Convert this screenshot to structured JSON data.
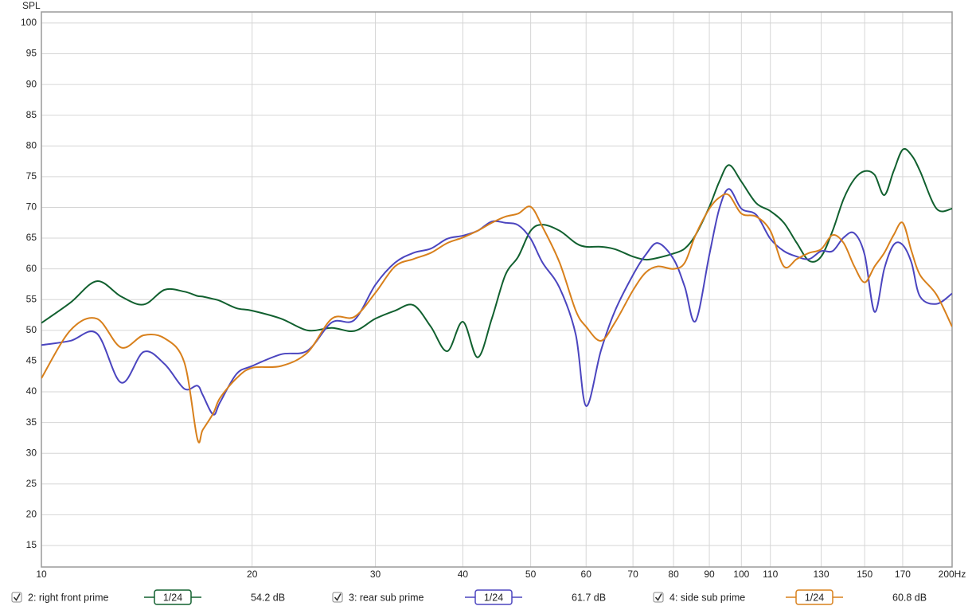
{
  "chart_data": {
    "type": "line",
    "y_label": "SPL",
    "xscale": "log",
    "grid": true,
    "xlim": [
      10,
      200
    ],
    "ylim": [
      11.5,
      101.8
    ],
    "xticks": [
      10,
      20,
      30,
      40,
      50,
      60,
      70,
      80,
      90,
      100,
      110,
      130,
      150,
      170,
      {
        "value": 200,
        "label": "200Hz"
      }
    ],
    "yticks": [
      15,
      20,
      25,
      30,
      35,
      40,
      45,
      50,
      55,
      60,
      65,
      70,
      75,
      80,
      85,
      90,
      95,
      100
    ],
    "x": [
      10,
      11,
      12,
      13,
      14,
      15,
      16,
      16.7,
      17,
      17.6,
      18,
      19,
      20,
      22,
      24,
      26,
      28,
      30,
      32,
      34,
      36,
      38,
      40,
      42,
      44,
      46,
      48,
      50,
      52,
      55,
      58,
      60,
      63,
      66,
      70,
      73,
      76,
      80,
      83,
      86,
      90,
      93,
      96,
      100,
      105,
      110,
      115,
      120,
      125,
      130,
      135,
      140,
      145,
      150,
      155,
      160,
      165,
      170,
      175,
      180,
      190,
      200
    ],
    "series": [
      {
        "name": "2: right front prime",
        "color": "#11602f",
        "smoothing": "1/24",
        "level": "54.2 dB",
        "values": [
          51.2,
          54.5,
          58,
          55.5,
          54.2,
          56.6,
          56.3,
          55.6,
          55.5,
          55.1,
          54.8,
          53.6,
          53.2,
          51.9,
          50,
          50.4,
          49.9,
          51.9,
          53.2,
          54.1,
          50.6,
          46.6,
          51.4,
          45.6,
          51.9,
          59,
          62,
          66.2,
          67.2,
          66.2,
          64.2,
          63.6,
          63.6,
          63.2,
          62,
          61.5,
          61.8,
          62.5,
          63.3,
          65.5,
          70.1,
          74.2,
          76.9,
          74.2,
          70.7,
          69.4,
          67.5,
          64.2,
          61.3,
          62,
          66.2,
          71.4,
          74.6,
          75.9,
          75.3,
          72,
          75.9,
          79.4,
          78.5,
          75.9,
          69.8,
          69.8
        ]
      },
      {
        "name": "3: rear sub prime",
        "color": "#4b45bf",
        "smoothing": "1/24",
        "level": "61.7 dB",
        "values": [
          47.6,
          48.3,
          49.5,
          41.5,
          46.5,
          44.5,
          40.5,
          41,
          39.5,
          36.3,
          38.3,
          42.9,
          44.2,
          46.1,
          46.7,
          51.3,
          51.7,
          57.4,
          61,
          62.6,
          63.3,
          64.9,
          65.4,
          66.2,
          67.7,
          67.5,
          67.1,
          64.9,
          61,
          56.9,
          49.3,
          37.7,
          46.7,
          53.2,
          59,
          62.3,
          64.2,
          61.6,
          57.1,
          51.5,
          62.3,
          69.8,
          73,
          69.8,
          68.8,
          64.9,
          62.9,
          62,
          61.6,
          62.9,
          62.9,
          65.1,
          65.8,
          62.3,
          53,
          60,
          63.9,
          63.9,
          61,
          55.5,
          54.3,
          56
        ]
      },
      {
        "name": "4: side sub prime",
        "color": "#d8801c",
        "smoothing": "1/24",
        "level": "60.8 dB",
        "values": [
          42.2,
          50,
          51.9,
          47.2,
          49.2,
          48.7,
          44.8,
          32.4,
          33.8,
          36.5,
          39,
          42.2,
          43.9,
          44.2,
          46.4,
          51.9,
          52.2,
          56.1,
          60.4,
          61.6,
          62.6,
          64.2,
          65.1,
          66.2,
          67.5,
          68.5,
          69,
          70.1,
          66.8,
          61,
          53.2,
          50.6,
          48.3,
          51.3,
          56.5,
          59.4,
          60.4,
          60,
          61,
          65.5,
          69.8,
          71.6,
          72,
          69,
          68.5,
          66.2,
          60.4,
          61.6,
          62.6,
          63.2,
          65.5,
          64.2,
          60.4,
          57.8,
          60.4,
          62.6,
          65.5,
          67.5,
          62.9,
          59,
          55.8,
          50.6
        ]
      }
    ]
  }
}
